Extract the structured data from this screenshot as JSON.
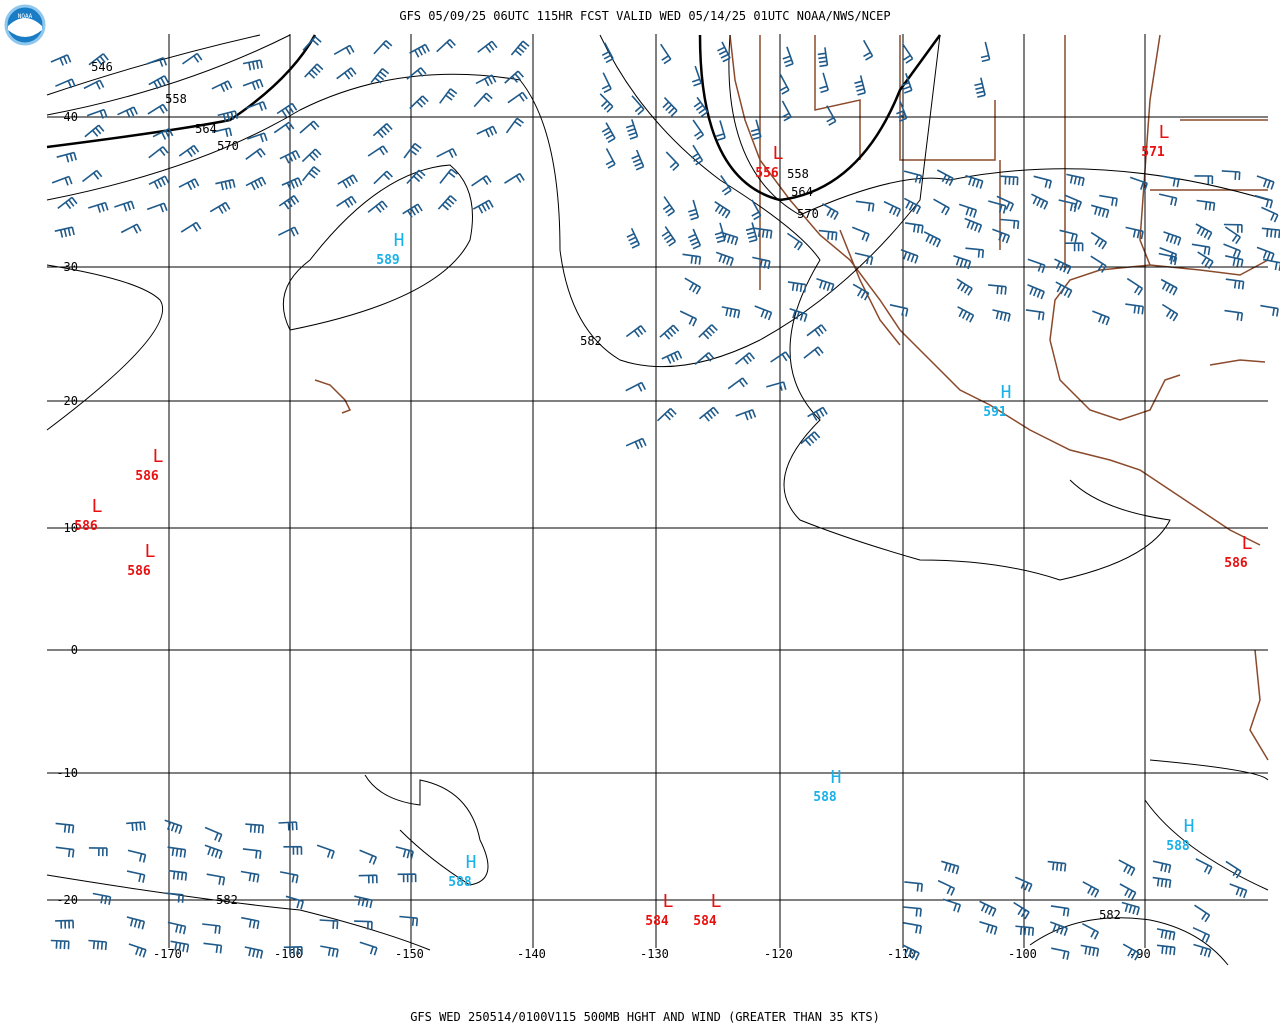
{
  "header": {
    "title": "GFS 05/09/25 06UTC 115HR FCST VALID WED 05/14/25 01UTC NOAA/NWS/NCEP",
    "logo": "NOAA"
  },
  "footer": "GFS WED 250514/0100V115 500MB HGHT AND WIND (GREATER THAN 35 KTS)",
  "map": {
    "lon_labels": [
      -170,
      -160,
      -150,
      -140,
      -130,
      -120,
      -110,
      -100,
      -90
    ],
    "lat_labels": [
      40,
      30,
      20,
      10,
      0,
      -10,
      -20
    ],
    "centers": [
      {
        "type": "H",
        "value": 589
      },
      {
        "type": "H",
        "value": 591
      },
      {
        "type": "H",
        "value": 588
      },
      {
        "type": "H",
        "value": 588
      },
      {
        "type": "H",
        "value": 588
      },
      {
        "type": "L",
        "value": 586
      },
      {
        "type": "L",
        "value": 586
      },
      {
        "type": "L",
        "value": 586
      },
      {
        "type": "L",
        "value": 556
      },
      {
        "type": "L",
        "value": 571
      },
      {
        "type": "L",
        "value": 586
      },
      {
        "type": "L",
        "value": 584
      },
      {
        "type": "L",
        "value": 584
      }
    ],
    "contour_labels": [
      546,
      558,
      564,
      570,
      582,
      558,
      564,
      570,
      582,
      582
    ]
  }
}
